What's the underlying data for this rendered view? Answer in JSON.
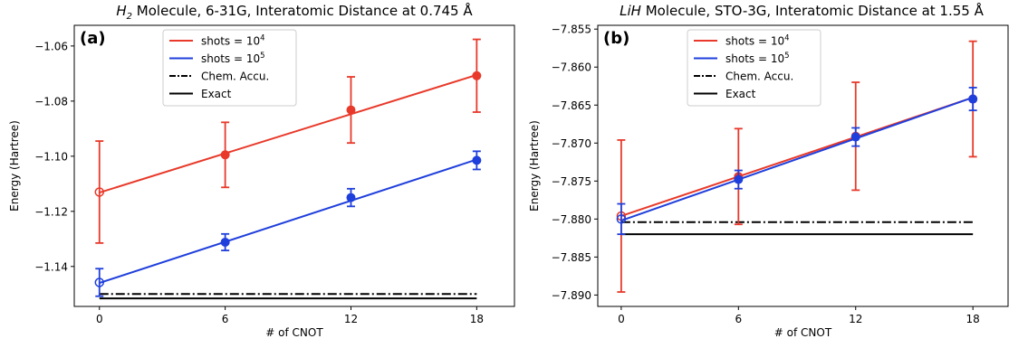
{
  "chart_data": [
    {
      "type": "line",
      "panel_label": "(a)",
      "title_italic": "H",
      "title_sub": "2",
      "title_rest": " Molecule, 6-31G, Interatomic Distance at 0.745 Å",
      "xlabel": "# of CNOT",
      "ylabel": "Energy (Hartree)",
      "xlim": [
        -1.2,
        19.8
      ],
      "ylim": [
        -1.1545,
        -1.0525
      ],
      "xticks": [
        0,
        6,
        12,
        18
      ],
      "yticks": [
        -1.14,
        -1.12,
        -1.1,
        -1.08,
        -1.06
      ],
      "ytick_labels": [
        "−1.14",
        "−1.12",
        "−1.10",
        "−1.08",
        "−1.06"
      ],
      "legend": {
        "position": "top-center",
        "entries": [
          {
            "base": "shots = 10",
            "exp": "4",
            "style": "solid",
            "color": "#e8392a"
          },
          {
            "base": "shots = 10",
            "exp": "5",
            "style": "solid",
            "color": "#1f3fdc"
          },
          {
            "base": "Chem. Accu.",
            "exp": "",
            "style": "dashdot",
            "color": "#000000"
          },
          {
            "base": "Exact",
            "exp": "",
            "style": "solid",
            "color": "#000000"
          }
        ]
      },
      "series": [
        {
          "color": "#e8392a",
          "x": [
            0,
            6,
            12,
            18
          ],
          "y": [
            -1.113,
            -1.0995,
            -1.0832,
            -1.0708
          ],
          "err": [
            0.0185,
            0.0118,
            0.012,
            0.0132
          ],
          "fit": [
            [
              0,
              -1.1132
            ],
            [
              18,
              -1.0705
            ]
          ]
        },
        {
          "color": "#1f3fdc",
          "x": [
            0,
            6,
            12,
            18
          ],
          "y": [
            -1.1458,
            -1.1312,
            -1.115,
            -1.1015
          ],
          "err": [
            0.005,
            0.003,
            0.0032,
            0.0033
          ],
          "fit": [
            [
              0,
              -1.146
            ],
            [
              18,
              -1.1012
            ]
          ]
        }
      ],
      "chem_accu": -1.15,
      "exact": -1.1516,
      "hline_range": [
        0,
        18
      ]
    },
    {
      "type": "line",
      "panel_label": "(b)",
      "title_italic": "LiH",
      "title_sub": "",
      "title_rest": " Molecule, STO-3G, Interatomic Distance at 1.55 Å",
      "xlabel": "# of CNOT",
      "ylabel": "Energy (Hartree)",
      "xlim": [
        -1.2,
        19.8
      ],
      "ylim": [
        -7.8915,
        -7.8545
      ],
      "xticks": [
        0,
        6,
        12,
        18
      ],
      "yticks": [
        -7.89,
        -7.885,
        -7.88,
        -7.875,
        -7.87,
        -7.865,
        -7.86,
        -7.855
      ],
      "ytick_labels": [
        "−7.890",
        "−7.885",
        "−7.880",
        "−7.875",
        "−7.870",
        "−7.865",
        "−7.860",
        "−7.855"
      ],
      "legend": {
        "position": "top-center",
        "entries": [
          {
            "base": "shots = 10",
            "exp": "4",
            "style": "solid",
            "color": "#e8392a"
          },
          {
            "base": "shots = 10",
            "exp": "5",
            "style": "solid",
            "color": "#1f3fdc"
          },
          {
            "base": "Chem. Accu.",
            "exp": "",
            "style": "dashdot",
            "color": "#000000"
          },
          {
            "base": "Exact",
            "exp": "",
            "style": "solid",
            "color": "#000000"
          }
        ]
      },
      "series": [
        {
          "color": "#e8392a",
          "x": [
            0,
            6,
            12,
            18
          ],
          "y": [
            -7.8796,
            -7.8744,
            -7.8691,
            -7.8642
          ],
          "err": [
            0.01,
            0.0063,
            0.0071,
            0.0076
          ],
          "fit": [
            [
              0,
              -7.8796
            ],
            [
              18,
              -7.864
            ]
          ]
        },
        {
          "color": "#1f3fdc",
          "x": [
            0,
            6,
            12,
            18
          ],
          "y": [
            -7.88,
            -7.8748,
            -7.8692,
            -7.8642
          ],
          "err": [
            0.002,
            0.0012,
            0.0012,
            0.0015
          ],
          "fit": [
            [
              0,
              -7.8802
            ],
            [
              18,
              -7.864
            ]
          ]
        }
      ],
      "chem_accu": -7.8804,
      "exact": -7.882,
      "hline_range": [
        0,
        18
      ]
    }
  ]
}
